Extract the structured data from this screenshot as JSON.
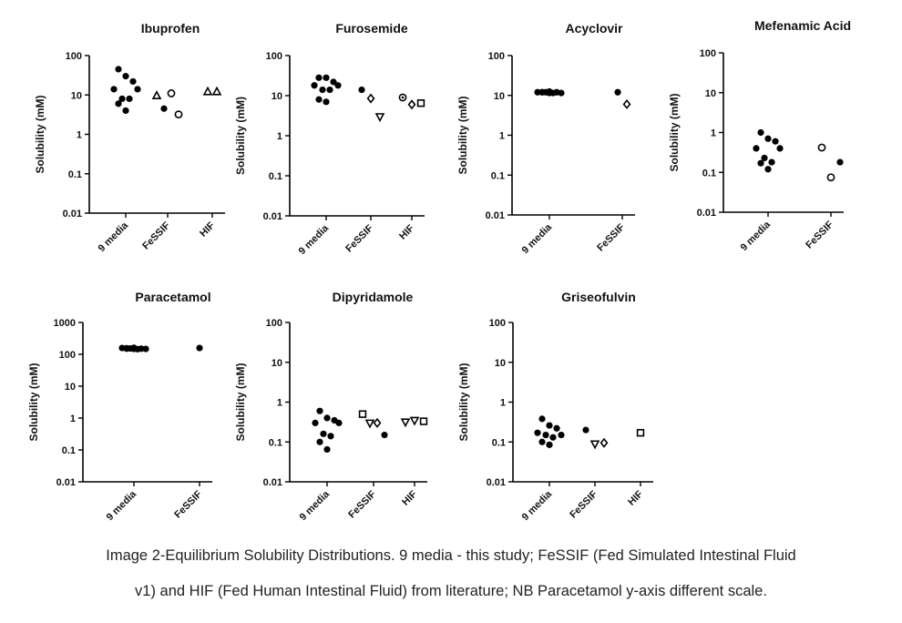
{
  "figure": {
    "caption_line1": "Image 2-Equilibrium Solubility Distributions. 9 media - this study; FeSSIF (Fed Simulated Intestinal Fluid",
    "caption_line2": "v1) and HIF (Fed Human Intestinal Fluid) from literature; NB Paracetamol y-axis different scale."
  },
  "chart_data": [
    {
      "type": "scatter",
      "title": "Ibuprofen",
      "ylabel": "Solubility (mM)",
      "yscale": "log",
      "ylim": [
        0.01,
        100
      ],
      "yticks": [
        "0.01",
        "0.1",
        "1",
        "10",
        "100"
      ],
      "categories": [
        "9 media",
        "FeSSIF",
        "HIF"
      ],
      "series": [
        {
          "category": "9 media",
          "marker": "filled-circle",
          "values": [
            45,
            30,
            22,
            14,
            14,
            8,
            8,
            6,
            4
          ]
        },
        {
          "category": "FeSSIF",
          "marker": "open-triangle-up",
          "values": [
            9.5
          ]
        },
        {
          "category": "FeSSIF",
          "marker": "filled-circle",
          "values": [
            4.5
          ]
        },
        {
          "category": "FeSSIF",
          "marker": "open-circle",
          "values": [
            11,
            3.2
          ]
        },
        {
          "category": "HIF",
          "marker": "open-triangle-up",
          "values": [
            12,
            12
          ]
        }
      ]
    },
    {
      "type": "scatter",
      "title": "Furosemide",
      "ylabel": "Solubility (mM)",
      "yscale": "log",
      "ylim": [
        0.01,
        100
      ],
      "yticks": [
        "0.01",
        "0.1",
        "1",
        "10",
        "100"
      ],
      "categories": [
        "9 media",
        "FeSSIF",
        "HIF"
      ],
      "series": [
        {
          "category": "9 media",
          "marker": "filled-circle",
          "values": [
            28,
            28,
            22,
            18,
            18,
            14,
            14,
            8,
            7
          ]
        },
        {
          "category": "FeSSIF",
          "marker": "filled-circle",
          "values": [
            14
          ]
        },
        {
          "category": "FeSSIF",
          "marker": "open-diamond",
          "values": [
            8.5
          ]
        },
        {
          "category": "FeSSIF",
          "marker": "open-triangle-down",
          "values": [
            3
          ]
        },
        {
          "category": "HIF",
          "marker": "circle-dot",
          "values": [
            9
          ]
        },
        {
          "category": "HIF",
          "marker": "open-diamond",
          "values": [
            6
          ]
        },
        {
          "category": "HIF",
          "marker": "open-square",
          "values": [
            6.5
          ]
        }
      ]
    },
    {
      "type": "scatter",
      "title": "Acyclovir",
      "ylabel": "Solubility (mM)",
      "yscale": "log",
      "ylim": [
        0.01,
        100
      ],
      "yticks": [
        "0.01",
        "0.1",
        "1",
        "10",
        "100"
      ],
      "categories": [
        "9 media",
        "FeSSIF"
      ],
      "series": [
        {
          "category": "9 media",
          "marker": "filled-circle",
          "values": [
            12,
            12.5,
            12,
            12,
            11.5,
            12,
            11.5,
            12,
            11.5
          ]
        },
        {
          "category": "FeSSIF",
          "marker": "filled-circle",
          "values": [
            12
          ]
        },
        {
          "category": "FeSSIF",
          "marker": "open-diamond",
          "values": [
            6
          ]
        }
      ]
    },
    {
      "type": "scatter",
      "title": "Mefenamic Acid",
      "ylabel": "Solubility (mM)",
      "yscale": "log",
      "ylim": [
        0.01,
        100
      ],
      "yticks": [
        "0.01",
        "0.1",
        "1",
        "10",
        "100"
      ],
      "categories": [
        "9 media",
        "FeSSIF"
      ],
      "series": [
        {
          "category": "9 media",
          "marker": "filled-circle",
          "values": [
            1.0,
            0.7,
            0.6,
            0.4,
            0.4,
            0.23,
            0.18,
            0.17,
            0.12
          ]
        },
        {
          "category": "FeSSIF",
          "marker": "open-circle",
          "values": [
            0.42,
            0.075
          ]
        },
        {
          "category": "FeSSIF",
          "marker": "filled-circle",
          "values": [
            0.18
          ]
        }
      ]
    },
    {
      "type": "scatter",
      "title": "Paracetamol",
      "ylabel": "Solubility (mM)",
      "yscale": "log",
      "ylim": [
        0.01,
        1000
      ],
      "yticks": [
        "0.01",
        "0.1",
        "1",
        "10",
        "100",
        "1000"
      ],
      "categories": [
        "9 media",
        "FeSSIF"
      ],
      "series": [
        {
          "category": "9 media",
          "marker": "filled-circle",
          "values": [
            155,
            160,
            150,
            158,
            148,
            152,
            145,
            150,
            148
          ]
        },
        {
          "category": "FeSSIF",
          "marker": "filled-circle",
          "values": [
            158
          ]
        }
      ]
    },
    {
      "type": "scatter",
      "title": "Dipyridamole",
      "ylabel": "Solubility (mM)",
      "yscale": "log",
      "ylim": [
        0.01,
        100
      ],
      "yticks": [
        "0.01",
        "0.1",
        "1",
        "10",
        "100"
      ],
      "categories": [
        "9 media",
        "FeSSIF",
        "HIF"
      ],
      "series": [
        {
          "category": "9 media",
          "marker": "filled-circle",
          "values": [
            0.6,
            0.4,
            0.35,
            0.3,
            0.3,
            0.16,
            0.14,
            0.1,
            0.065
          ]
        },
        {
          "category": "FeSSIF",
          "marker": "open-square",
          "values": [
            0.5
          ]
        },
        {
          "category": "FeSSIF",
          "marker": "open-triangle-down",
          "values": [
            0.3
          ]
        },
        {
          "category": "FeSSIF",
          "marker": "open-diamond",
          "values": [
            0.3
          ]
        },
        {
          "category": "FeSSIF",
          "marker": "filled-circle",
          "values": [
            0.15
          ]
        },
        {
          "category": "HIF",
          "marker": "open-triangle-down",
          "values": [
            0.32,
            0.35
          ]
        },
        {
          "category": "HIF",
          "marker": "open-square",
          "values": [
            0.33
          ]
        }
      ]
    },
    {
      "type": "scatter",
      "title": "Griseofulvin",
      "ylabel": "Solubility (mM)",
      "yscale": "log",
      "ylim": [
        0.01,
        100
      ],
      "yticks": [
        "0.01",
        "0.1",
        "1",
        "10",
        "100"
      ],
      "categories": [
        "9 media",
        "FeSSIF",
        "HIF"
      ],
      "series": [
        {
          "category": "9 media",
          "marker": "filled-circle",
          "values": [
            0.38,
            0.26,
            0.22,
            0.17,
            0.15,
            0.15,
            0.13,
            0.1,
            0.085
          ]
        },
        {
          "category": "FeSSIF",
          "marker": "filled-circle",
          "values": [
            0.2
          ]
        },
        {
          "category": "FeSSIF",
          "marker": "open-triangle-down",
          "values": [
            0.09
          ]
        },
        {
          "category": "FeSSIF",
          "marker": "open-diamond",
          "values": [
            0.095
          ]
        },
        {
          "category": "HIF",
          "marker": "open-square",
          "values": [
            0.17
          ]
        }
      ]
    }
  ]
}
